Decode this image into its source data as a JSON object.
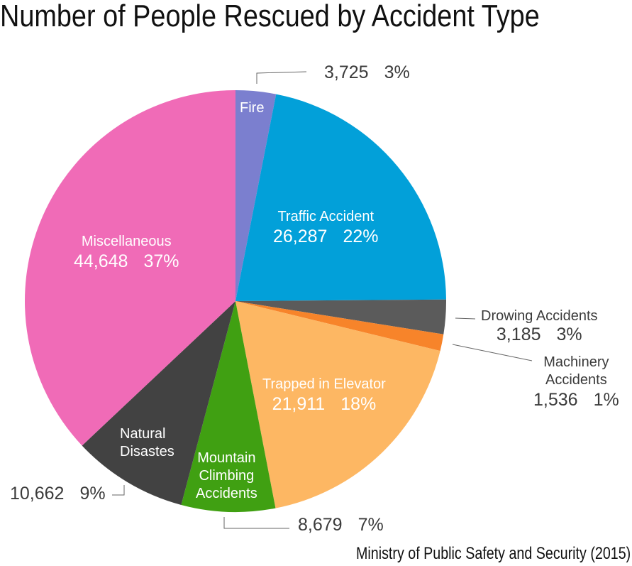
{
  "chart_data": {
    "type": "pie",
    "title": "Number of People Rescued by Accident Type",
    "source": "Ministry of Public Safety and Security (2015)",
    "start": "top",
    "direction": "clockwise",
    "slices": [
      {
        "label": "Fire",
        "value": 3725,
        "value_text": "3,725",
        "percent": "3%",
        "color": "#7b7fcf"
      },
      {
        "label": "Traffic Accident",
        "value": 26287,
        "value_text": "26,287",
        "percent": "22%",
        "color": "#02a0d9"
      },
      {
        "label": "Drowing Accidents",
        "value": 3185,
        "value_text": "3,185",
        "percent": "3%",
        "color": "#5b5b5b"
      },
      {
        "label": "Machinery Accidents",
        "label_lines": [
          "Machinery",
          "Accidents"
        ],
        "value": 1536,
        "value_text": "1,536",
        "percent": "1%",
        "color": "#f7842a"
      },
      {
        "label": "Trapped in Elevator",
        "value": 21911,
        "value_text": "21,911",
        "percent": "18%",
        "color": "#fdb763"
      },
      {
        "label": "Mountain Climbing Accidents",
        "label_lines": [
          "Mountain",
          "Climbing",
          "Accidents"
        ],
        "value": 8679,
        "value_text": "8,679",
        "percent": "7%",
        "color": "#40a012"
      },
      {
        "label": "Natural Disastes",
        "label_lines": [
          "Natural",
          "Disastes"
        ],
        "value": 10662,
        "value_text": "10,662",
        "percent": "9%",
        "color": "#424242"
      },
      {
        "label": "Miscellaneous",
        "value": 44648,
        "value_text": "44,648",
        "percent": "37%",
        "color": "#f06bb7"
      }
    ]
  }
}
